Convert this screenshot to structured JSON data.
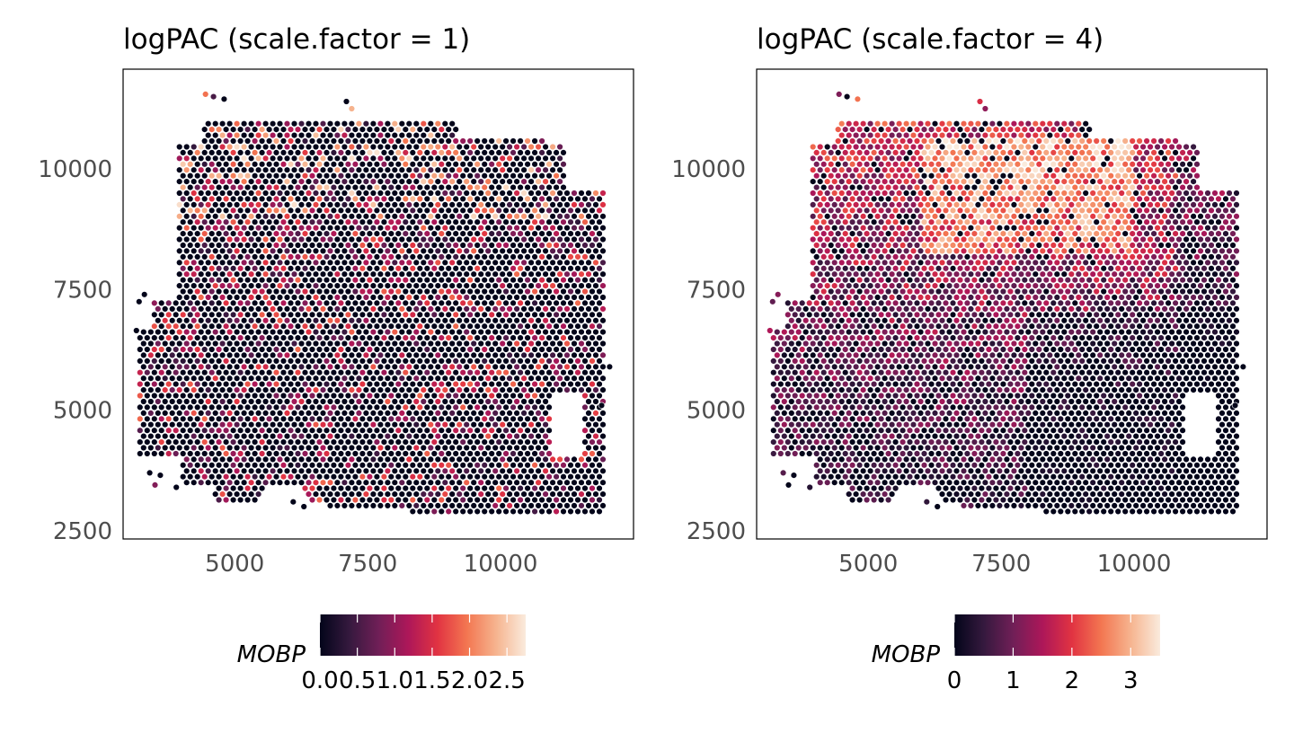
{
  "chart_data": [
    {
      "type": "scatter",
      "title": "logPAC (scale.factor = 1)",
      "xlabel": "",
      "ylabel": "",
      "xlim": [
        2900,
        12500
      ],
      "ylim": [
        2330,
        12070
      ],
      "x_ticks": [
        5000,
        7500,
        10000
      ],
      "x_tick_labels": [
        "5000",
        "7500",
        "10000"
      ],
      "y_ticks": [
        2500,
        5000,
        7500,
        10000
      ],
      "y_tick_labels": [
        "2500",
        "5000",
        "7500",
        "10000"
      ],
      "grid": false,
      "legend": {
        "placement": "bottom",
        "title": "MOBP",
        "range": [
          0,
          2.75
        ],
        "ticks": [
          0.0,
          0.5,
          1.0,
          1.5,
          2.0,
          2.5
        ],
        "tick_labels": [
          "0.0",
          "0.5",
          "1.0",
          "1.5",
          "2.0",
          "2.5"
        ]
      },
      "point_color_scale": "rocket",
      "color_pattern": "mostly zero (dark); scattered higher values in upper tissue",
      "series": [
        {
          "values_summary": "spot-level MOBP logPAC values, max ~2.75"
        }
      ]
    },
    {
      "type": "scatter",
      "title": "logPAC (scale.factor = 4)",
      "xlabel": "",
      "ylabel": "",
      "xlim": [
        2900,
        12500
      ],
      "ylim": [
        2330,
        12070
      ],
      "x_ticks": [
        5000,
        7500,
        10000
      ],
      "x_tick_labels": [
        "5000",
        "7500",
        "10000"
      ],
      "y_ticks": [
        2500,
        5000,
        7500,
        10000
      ],
      "y_tick_labels": [
        "2500",
        "5000",
        "7500",
        "10000"
      ],
      "grid": false,
      "legend": {
        "placement": "bottom",
        "title": "MOBP",
        "range": [
          0,
          3.5
        ],
        "ticks": [
          0,
          1,
          2,
          3
        ],
        "tick_labels": [
          "0",
          "1",
          "2",
          "3"
        ]
      },
      "point_color_scale": "rocket",
      "color_pattern": "high values (light) concentrated in upper band, low values (dark) in lower-right",
      "series": [
        {
          "values_summary": "spot-level MOBP logPAC values, max ~3.5"
        }
      ]
    }
  ],
  "colors": {
    "scale": [
      "#03051a",
      "#35193e",
      "#701f57",
      "#ad1759",
      "#e13342",
      "#f37651",
      "#f6b48f",
      "#faebdd"
    ],
    "background": "#ffffff",
    "panel_border": "#000000",
    "tick_label": "#4d4d4d",
    "title": "#000000",
    "point_outline": "#ffffff"
  }
}
